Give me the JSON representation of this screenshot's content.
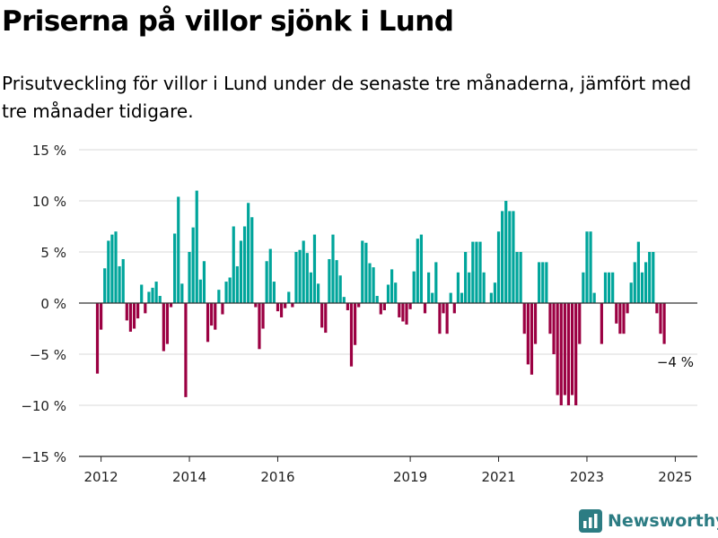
{
  "title": "Priserna på villor sjönk i Lund",
  "subtitle": "Prisutveckling för villor i Lund under de senaste tre månaderna, jämfört med tre månader tidigare.",
  "brand": {
    "name": "Newsworthy",
    "icon": "newsworthy-logo-icon"
  },
  "colors": {
    "positive": "#00a59b",
    "negative": "#9b0042",
    "grid": "#d9d9d9",
    "zero_line": "#333333"
  },
  "chart_data": {
    "type": "bar",
    "title": "Priserna på villor sjönk i Lund",
    "xlabel": "",
    "ylabel": "",
    "ylim": [
      -15,
      15
    ],
    "y_ticks": [
      15,
      10,
      5,
      0,
      -5,
      -10,
      -15
    ],
    "y_tick_labels": [
      "15 %",
      "10 %",
      "5 %",
      "0 %",
      "−5 %",
      "−10 %",
      "−15 %"
    ],
    "x_ticks": [
      "2012",
      "2014",
      "2016",
      "2019",
      "2021",
      "2023",
      "2025"
    ],
    "x_tick_dates": [
      "2012-01",
      "2014-01",
      "2016-01",
      "2019-01",
      "2021-01",
      "2023-01",
      "2025-01"
    ],
    "grid": true,
    "annotation": {
      "date": "2025-01",
      "label": "−4 %"
    },
    "series": [
      {
        "data": [
          [
            "2011-12",
            -6.9
          ],
          [
            "2012-01",
            -2.6
          ],
          [
            "2012-02",
            3.4
          ],
          [
            "2012-03",
            6.1
          ],
          [
            "2012-04",
            6.7
          ],
          [
            "2012-05",
            7.0
          ],
          [
            "2012-06",
            3.6
          ],
          [
            "2012-07",
            4.3
          ],
          [
            "2012-08",
            -1.7
          ],
          [
            "2012-09",
            -2.8
          ],
          [
            "2012-10",
            -2.5
          ],
          [
            "2012-11",
            -1.5
          ],
          [
            "2012-12",
            1.8
          ],
          [
            "2013-01",
            -1.0
          ],
          [
            "2013-02",
            1.1
          ],
          [
            "2013-03",
            1.5
          ],
          [
            "2013-04",
            2.1
          ],
          [
            "2013-05",
            0.7
          ],
          [
            "2013-06",
            -4.7
          ],
          [
            "2013-07",
            -4.0
          ],
          [
            "2013-08",
            -0.4
          ],
          [
            "2013-09",
            6.8
          ],
          [
            "2013-10",
            10.4
          ],
          [
            "2013-11",
            1.9
          ],
          [
            "2013-12",
            -9.2
          ],
          [
            "2014-01",
            5.0
          ],
          [
            "2014-02",
            7.4
          ],
          [
            "2014-03",
            11.0
          ],
          [
            "2014-04",
            2.3
          ],
          [
            "2014-05",
            4.1
          ],
          [
            "2014-06",
            -3.8
          ],
          [
            "2014-07",
            -2.2
          ],
          [
            "2014-08",
            -2.6
          ],
          [
            "2014-09",
            1.3
          ],
          [
            "2014-10",
            -1.1
          ],
          [
            "2014-11",
            2.1
          ],
          [
            "2014-12",
            2.5
          ],
          [
            "2015-01",
            7.5
          ],
          [
            "2015-02",
            3.6
          ],
          [
            "2015-03",
            6.1
          ],
          [
            "2015-04",
            7.5
          ],
          [
            "2015-05",
            9.8
          ],
          [
            "2015-06",
            8.4
          ],
          [
            "2015-07",
            -0.4
          ],
          [
            "2015-08",
            -4.5
          ],
          [
            "2015-09",
            -2.5
          ],
          [
            "2015-10",
            4.1
          ],
          [
            "2015-11",
            5.3
          ],
          [
            "2015-12",
            2.1
          ],
          [
            "2016-01",
            -0.8
          ],
          [
            "2016-02",
            -1.4
          ],
          [
            "2016-03",
            -0.5
          ],
          [
            "2016-04",
            1.1
          ],
          [
            "2016-05",
            -0.4
          ],
          [
            "2016-06",
            5.0
          ],
          [
            "2016-07",
            5.2
          ],
          [
            "2016-08",
            6.1
          ],
          [
            "2016-09",
            4.9
          ],
          [
            "2016-10",
            3.0
          ],
          [
            "2016-11",
            6.7
          ],
          [
            "2016-12",
            1.9
          ],
          [
            "2017-01",
            -2.4
          ],
          [
            "2017-02",
            -2.9
          ],
          [
            "2017-03",
            4.3
          ],
          [
            "2017-04",
            6.7
          ],
          [
            "2017-05",
            4.2
          ],
          [
            "2017-06",
            2.7
          ],
          [
            "2017-07",
            0.6
          ],
          [
            "2017-08",
            -0.7
          ],
          [
            "2017-09",
            -6.2
          ],
          [
            "2017-10",
            -4.1
          ],
          [
            "2017-11",
            -0.4
          ],
          [
            "2017-12",
            6.1
          ],
          [
            "2018-01",
            5.9
          ],
          [
            "2018-02",
            3.9
          ],
          [
            "2018-03",
            3.5
          ],
          [
            "2018-04",
            0.7
          ],
          [
            "2018-05",
            -1.1
          ],
          [
            "2018-06",
            -0.7
          ],
          [
            "2018-07",
            1.8
          ],
          [
            "2018-08",
            3.3
          ],
          [
            "2018-09",
            2.0
          ],
          [
            "2018-10",
            -1.4
          ],
          [
            "2018-11",
            -1.8
          ],
          [
            "2018-12",
            -2.1
          ],
          [
            "2019-01",
            -0.6
          ],
          [
            "2019-02",
            3.1
          ],
          [
            "2019-03",
            6.3
          ],
          [
            "2019-04",
            6.7
          ],
          [
            "2019-05",
            -1.0
          ],
          [
            "2019-06",
            3.0
          ],
          [
            "2019-07",
            1.0
          ],
          [
            "2019-08",
            4.0
          ],
          [
            "2019-09",
            -3.0
          ],
          [
            "2019-10",
            -1.0
          ],
          [
            "2019-11",
            -3.0
          ],
          [
            "2019-12",
            1.0
          ],
          [
            "2020-01",
            -1.0
          ],
          [
            "2020-02",
            3.0
          ],
          [
            "2020-03",
            1.0
          ],
          [
            "2020-04",
            5.0
          ],
          [
            "2020-05",
            3.0
          ],
          [
            "2020-06",
            6.0
          ],
          [
            "2020-07",
            6.0
          ],
          [
            "2020-08",
            6.0
          ],
          [
            "2020-09",
            3.0
          ],
          [
            "2020-10",
            0.0
          ],
          [
            "2020-11",
            1.0
          ],
          [
            "2020-12",
            2.0
          ],
          [
            "2021-01",
            7.0
          ],
          [
            "2021-02",
            9.0
          ],
          [
            "2021-03",
            10.0
          ],
          [
            "2021-04",
            9.0
          ],
          [
            "2021-05",
            9.0
          ],
          [
            "2021-06",
            5.0
          ],
          [
            "2021-07",
            5.0
          ],
          [
            "2021-08",
            -3.0
          ],
          [
            "2021-09",
            -6.0
          ],
          [
            "2021-10",
            -7.0
          ],
          [
            "2021-11",
            -4.0
          ],
          [
            "2021-12",
            4.0
          ],
          [
            "2022-01",
            4.0
          ],
          [
            "2022-02",
            4.0
          ],
          [
            "2022-03",
            -3.0
          ],
          [
            "2022-04",
            -5.0
          ],
          [
            "2022-05",
            -9.0
          ],
          [
            "2022-06",
            -10.0
          ],
          [
            "2022-07",
            -9.0
          ],
          [
            "2022-08",
            -10.0
          ],
          [
            "2022-09",
            -9.0
          ],
          [
            "2022-10",
            -10.0
          ],
          [
            "2022-11",
            -4.0
          ],
          [
            "2022-12",
            3.0
          ],
          [
            "2023-01",
            7.0
          ],
          [
            "2023-02",
            7.0
          ],
          [
            "2023-03",
            1.0
          ],
          [
            "2023-04",
            0.0
          ],
          [
            "2023-05",
            -4.0
          ],
          [
            "2023-06",
            3.0
          ],
          [
            "2023-07",
            3.0
          ],
          [
            "2023-08",
            3.0
          ],
          [
            "2023-09",
            -2.0
          ],
          [
            "2023-10",
            -3.0
          ],
          [
            "2023-11",
            -3.0
          ],
          [
            "2023-12",
            -1.0
          ],
          [
            "2024-01",
            2.0
          ],
          [
            "2024-02",
            4.0
          ],
          [
            "2024-03",
            6.0
          ],
          [
            "2024-04",
            3.0
          ],
          [
            "2024-05",
            4.0
          ],
          [
            "2024-06",
            5.0
          ],
          [
            "2024-07",
            5.0
          ],
          [
            "2024-08",
            -1.0
          ],
          [
            "2024-09",
            -3.0
          ],
          [
            "2024-10",
            -4.0
          ]
        ]
      }
    ]
  }
}
